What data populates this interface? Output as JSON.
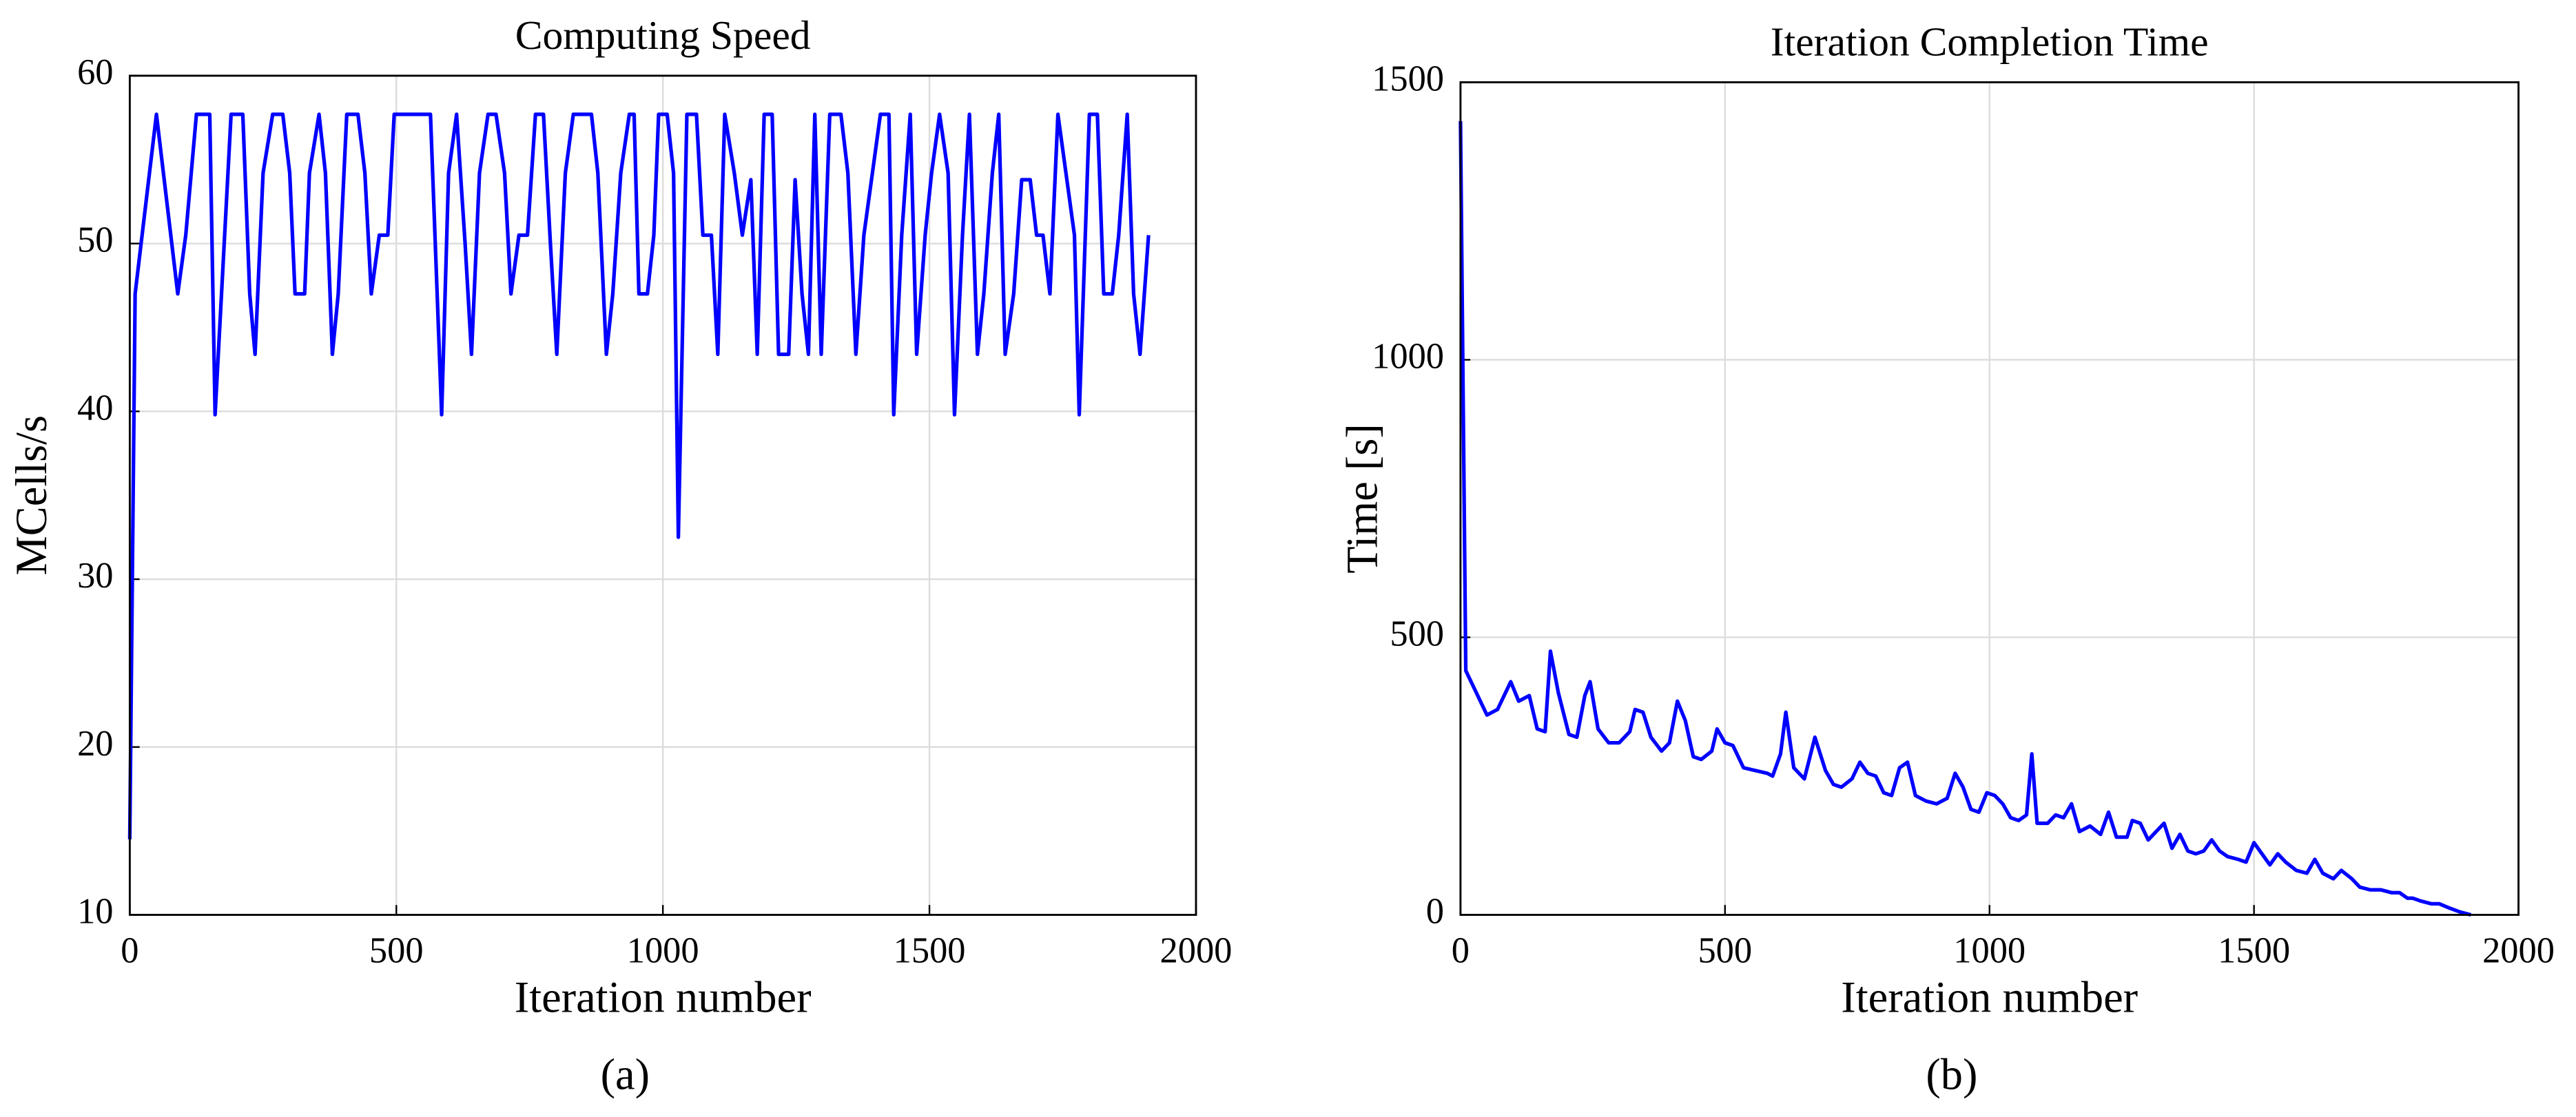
{
  "chart_data": [
    {
      "type": "line",
      "title": "Computing Speed",
      "x_label": "Iteration number",
      "y_label": "MCells/s",
      "caption": "(a)",
      "color": "#0000ff",
      "grid": true,
      "xlim": [
        0,
        2000
      ],
      "xticks": [
        0,
        500,
        1000,
        1500,
        2000
      ],
      "ylim": [
        10,
        60
      ],
      "yticks": [
        10,
        20,
        30,
        40,
        50,
        60
      ],
      "x": [
        0,
        10,
        50,
        90,
        105,
        125,
        150,
        160,
        190,
        212,
        225,
        235,
        250,
        268,
        287,
        300,
        310,
        328,
        337,
        355,
        367,
        380,
        391,
        407,
        428,
        441,
        453,
        468,
        484,
        496,
        564,
        585,
        598,
        613,
        629,
        641,
        656,
        672,
        687,
        703,
        715,
        730,
        746,
        761,
        776,
        789,
        801,
        817,
        832,
        866,
        878,
        894,
        906,
        921,
        937,
        946,
        955,
        971,
        983,
        992,
        1008,
        1020,
        1029,
        1045,
        1063,
        1075,
        1091,
        1103,
        1116,
        1134,
        1149,
        1165,
        1177,
        1190,
        1205,
        1217,
        1236,
        1248,
        1261,
        1273,
        1285,
        1297,
        1313,
        1334,
        1347,
        1362,
        1377,
        1393,
        1408,
        1424,
        1433,
        1448,
        1464,
        1476,
        1492,
        1504,
        1519,
        1535,
        1547,
        1562,
        1575,
        1590,
        1602,
        1618,
        1630,
        1642,
        1658,
        1673,
        1689,
        1701,
        1713,
        1726,
        1741,
        1772,
        1781,
        1800,
        1815,
        1827,
        1843,
        1855,
        1871,
        1883,
        1895,
        1911
      ],
      "values": [
        14.5,
        47,
        57.7,
        47,
        50.5,
        57.7,
        57.7,
        39.8,
        57.7,
        57.7,
        47,
        43.4,
        54.2,
        57.7,
        57.7,
        54.2,
        47,
        47,
        54.2,
        57.7,
        54.2,
        43.4,
        47,
        57.7,
        57.7,
        54.2,
        47,
        50.5,
        50.5,
        57.7,
        57.7,
        39.8,
        54.2,
        57.7,
        50,
        43.4,
        54.2,
        57.7,
        57.7,
        54.2,
        47,
        50.5,
        50.5,
        57.7,
        57.7,
        50,
        43.4,
        54.2,
        57.7,
        57.7,
        54.2,
        43.4,
        47,
        54.2,
        57.7,
        57.7,
        47,
        47,
        50.5,
        57.7,
        57.7,
        54.2,
        32.5,
        57.7,
        57.7,
        50.5,
        50.5,
        43.4,
        57.7,
        54.2,
        50.5,
        53.8,
        43.4,
        57.7,
        57.7,
        43.4,
        43.4,
        53.8,
        47,
        43.4,
        57.7,
        43.4,
        57.7,
        57.7,
        54.2,
        43.4,
        50.5,
        54.2,
        57.7,
        57.7,
        39.8,
        50.5,
        57.7,
        43.4,
        50.5,
        54.2,
        57.7,
        54.2,
        39.8,
        50.5,
        57.7,
        43.4,
        47,
        54.2,
        57.7,
        43.4,
        47,
        53.8,
        53.8,
        50.5,
        50.5,
        47,
        57.7,
        50.5,
        39.8,
        57.7,
        57.7,
        47,
        47,
        50.5,
        57.7,
        47,
        43.4,
        50.5
      ]
    },
    {
      "type": "line",
      "title": "Iteration Completion Time",
      "x_label": "Iteration number",
      "y_label": "Time [s]",
      "caption": "(b)",
      "color": "#0000ff",
      "grid": true,
      "xlim": [
        0,
        2000
      ],
      "xticks": [
        0,
        500,
        1000,
        1500,
        2000
      ],
      "ylim": [
        0,
        1500
      ],
      "yticks": [
        0,
        500,
        1000,
        1500
      ],
      "x": [
        0,
        10,
        30,
        50,
        70,
        95,
        110,
        130,
        145,
        160,
        170,
        185,
        205,
        220,
        235,
        245,
        260,
        280,
        300,
        320,
        330,
        345,
        360,
        380,
        395,
        410,
        425,
        440,
        455,
        475,
        485,
        500,
        515,
        535,
        580,
        590,
        605,
        615,
        630,
        650,
        670,
        690,
        705,
        720,
        740,
        755,
        770,
        785,
        800,
        815,
        830,
        845,
        860,
        880,
        900,
        920,
        935,
        950,
        965,
        980,
        995,
        1010,
        1025,
        1040,
        1055,
        1070,
        1080,
        1090,
        1110,
        1125,
        1140,
        1155,
        1170,
        1190,
        1210,
        1225,
        1240,
        1260,
        1270,
        1285,
        1300,
        1315,
        1330,
        1345,
        1360,
        1375,
        1390,
        1405,
        1420,
        1435,
        1450,
        1470,
        1485,
        1500,
        1515,
        1530,
        1545,
        1560,
        1580,
        1600,
        1615,
        1630,
        1650,
        1665,
        1685,
        1700,
        1720,
        1740,
        1760,
        1775,
        1790,
        1800,
        1815,
        1835,
        1850,
        1870,
        1890,
        1910
      ],
      "values": [
        1430,
        440,
        400,
        360,
        370,
        420,
        385,
        395,
        335,
        330,
        475,
        400,
        325,
        320,
        395,
        420,
        335,
        310,
        310,
        330,
        370,
        365,
        320,
        295,
        310,
        385,
        350,
        285,
        280,
        295,
        335,
        310,
        305,
        265,
        255,
        250,
        290,
        365,
        265,
        245,
        320,
        260,
        235,
        230,
        245,
        275,
        255,
        250,
        220,
        215,
        265,
        275,
        215,
        205,
        200,
        210,
        255,
        230,
        190,
        185,
        220,
        215,
        200,
        175,
        170,
        180,
        290,
        165,
        165,
        180,
        175,
        200,
        150,
        160,
        145,
        185,
        140,
        140,
        170,
        165,
        135,
        150,
        165,
        120,
        145,
        115,
        110,
        115,
        135,
        115,
        105,
        100,
        95,
        130,
        110,
        90,
        110,
        95,
        80,
        75,
        100,
        75,
        65,
        80,
        65,
        50,
        45,
        45,
        40,
        40,
        30,
        30,
        25,
        20,
        20,
        12,
        5,
        0
      ]
    }
  ]
}
